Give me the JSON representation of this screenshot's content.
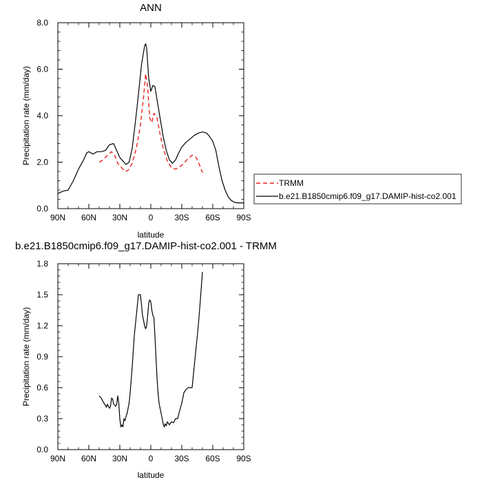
{
  "chart_data": [
    {
      "type": "line",
      "title": "ANN",
      "xlabel": "latitude",
      "ylabel": "Precipitation rate (mm/day)",
      "xlim": [
        -90,
        90
      ],
      "ylim": [
        0,
        8
      ],
      "xticks": [
        -90,
        -60,
        -30,
        0,
        30,
        60,
        90
      ],
      "xtick_labels": [
        "90N",
        "60N",
        "30N",
        "0",
        "30S",
        "60S",
        "90S"
      ],
      "yticks": [
        0,
        2,
        4,
        6,
        8
      ],
      "ytick_labels": [
        "0.0",
        "2.0",
        "4.0",
        "6.0",
        "8.0"
      ],
      "legend_position": "right",
      "series": [
        {
          "name": "TRMM",
          "color": "#e8231f",
          "dash": "dashed",
          "x": [
            -50,
            -46,
            -42,
            -38,
            -35,
            -32,
            -28,
            -25,
            -22,
            -18,
            -14,
            -10,
            -7,
            -5,
            -3,
            -1,
            1,
            3,
            6,
            9,
            12,
            16,
            20,
            24,
            28,
            32,
            36,
            40,
            44,
            47,
            50
          ],
          "y": [
            2.0,
            2.1,
            2.3,
            2.45,
            2.3,
            1.95,
            1.75,
            1.6,
            1.65,
            1.95,
            2.6,
            3.6,
            4.8,
            5.8,
            5.2,
            3.9,
            3.7,
            4.1,
            3.9,
            3.2,
            2.6,
            2.05,
            1.75,
            1.7,
            1.8,
            1.95,
            2.15,
            2.3,
            2.2,
            1.9,
            1.55
          ]
        },
        {
          "name": "b.e21.B1850cmip6.f09_g17.DAMIP-hist-co2.001",
          "color": "#000000",
          "dash": "solid",
          "x": [
            -90,
            -85,
            -80,
            -75,
            -70,
            -65,
            -62,
            -60,
            -56,
            -52,
            -48,
            -44,
            -40,
            -36,
            -33,
            -30,
            -27,
            -24,
            -21,
            -18,
            -15,
            -12,
            -9,
            -6,
            -5,
            -4,
            -2,
            0,
            2,
            4,
            6,
            9,
            12,
            15,
            18,
            21,
            24,
            27,
            30,
            34,
            38,
            42,
            46,
            50,
            54,
            57,
            60,
            63,
            66,
            69,
            72,
            75,
            78,
            81,
            84,
            87,
            90
          ],
          "y": [
            0.65,
            0.75,
            0.8,
            1.2,
            1.7,
            2.1,
            2.4,
            2.45,
            2.35,
            2.45,
            2.45,
            2.5,
            2.75,
            2.8,
            2.5,
            2.2,
            2.05,
            1.9,
            2.0,
            2.6,
            3.7,
            4.9,
            6.2,
            7.0,
            7.1,
            6.9,
            5.6,
            5.05,
            5.3,
            5.25,
            4.7,
            3.9,
            3.1,
            2.5,
            2.1,
            1.95,
            2.1,
            2.4,
            2.65,
            2.85,
            3.0,
            3.15,
            3.25,
            3.3,
            3.25,
            3.1,
            2.9,
            2.5,
            1.8,
            1.2,
            0.8,
            0.5,
            0.35,
            0.27,
            0.25,
            0.25,
            0.25
          ]
        }
      ]
    },
    {
      "type": "line",
      "title": "b.e21.B1850cmip6.f09_g17.DAMIP-hist-co2.001 - TRMM",
      "xlabel": "latitude",
      "ylabel": "Precipitation rate (mm/day)",
      "xlim": [
        -90,
        90
      ],
      "ylim": [
        0,
        1.8
      ],
      "xticks": [
        -90,
        -60,
        -30,
        0,
        30,
        60,
        90
      ],
      "xtick_labels": [
        "90N",
        "60N",
        "30N",
        "0",
        "30S",
        "60S",
        "90S"
      ],
      "yticks": [
        0,
        0.3,
        0.6,
        0.9,
        1.2,
        1.5,
        1.8
      ],
      "ytick_labels": [
        "0.0",
        "0.3",
        "0.6",
        "0.9",
        "1.2",
        "1.5",
        "1.8"
      ],
      "series": [
        {
          "name": "",
          "color": "#000000",
          "dash": "solid",
          "x": [
            -50,
            -48,
            -46,
            -44,
            -43,
            -42,
            -40,
            -39,
            -38,
            -37,
            -36,
            -35,
            -34,
            -33,
            -32,
            -31,
            -30,
            -29,
            -28,
            -27,
            -26,
            -25,
            -24,
            -23,
            -22,
            -21,
            -20,
            -18,
            -16,
            -14,
            -12,
            -10,
            -9,
            -8,
            -7,
            -6,
            -5,
            -4,
            -3,
            -2,
            -1,
            0,
            1,
            2,
            3,
            4,
            5,
            6,
            7,
            8,
            9,
            10,
            11,
            12,
            13,
            14,
            15,
            16,
            18,
            20,
            22,
            24,
            26,
            28,
            30,
            32,
            34,
            36,
            38,
            40,
            42,
            44,
            46,
            48,
            50
          ],
          "y": [
            0.52,
            0.5,
            0.46,
            0.43,
            0.41,
            0.44,
            0.4,
            0.42,
            0.5,
            0.49,
            0.44,
            0.43,
            0.42,
            0.44,
            0.52,
            0.45,
            0.3,
            0.22,
            0.24,
            0.22,
            0.3,
            0.28,
            0.32,
            0.35,
            0.4,
            0.45,
            0.55,
            0.8,
            1.1,
            1.3,
            1.5,
            1.5,
            1.4,
            1.3,
            1.25,
            1.2,
            1.17,
            1.2,
            1.3,
            1.42,
            1.45,
            1.43,
            1.35,
            1.3,
            1.28,
            1.1,
            0.9,
            0.7,
            0.55,
            0.45,
            0.4,
            0.35,
            0.3,
            0.25,
            0.22,
            0.25,
            0.23,
            0.27,
            0.24,
            0.27,
            0.26,
            0.3,
            0.3,
            0.38,
            0.45,
            0.55,
            0.58,
            0.6,
            0.6,
            0.6,
            0.8,
            1.0,
            1.2,
            1.45,
            1.72
          ]
        }
      ]
    }
  ]
}
